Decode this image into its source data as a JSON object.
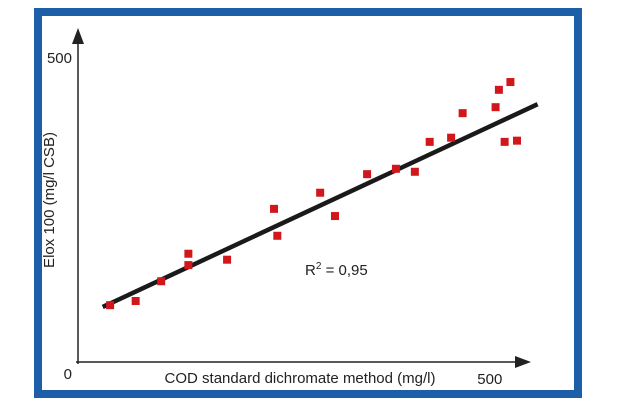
{
  "chart_data": {
    "type": "scatter",
    "x_label": "COD standard dichromate method (mg/l)",
    "y_label": "Elox 100 (mg/l CSB)",
    "annotation": [
      "R",
      "2",
      " = 0,95"
    ],
    "series": [
      {
        "color": "#d2171c",
        "x": [
          39,
          70,
          101,
          134,
          134,
          181,
          238,
          242,
          294,
          312,
          351,
          386,
          409,
          427,
          453,
          467,
          507,
          511,
          518,
          525,
          533
        ],
        "values": [
          95,
          102,
          135,
          181,
          162,
          171,
          256,
          211,
          283,
          244,
          314,
          323,
          318,
          368,
          375,
          416,
          426,
          455,
          368,
          468,
          370
        ]
      }
    ],
    "fit_line": {
      "color": "#1a1a1a",
      "x": [
        30,
        558
      ],
      "values": [
        92,
        431
      ]
    },
    "xlim": [
      0,
      550
    ],
    "ylim": [
      0,
      555
    ],
    "xticks": [
      500
    ],
    "yticks": [
      0,
      500
    ]
  }
}
